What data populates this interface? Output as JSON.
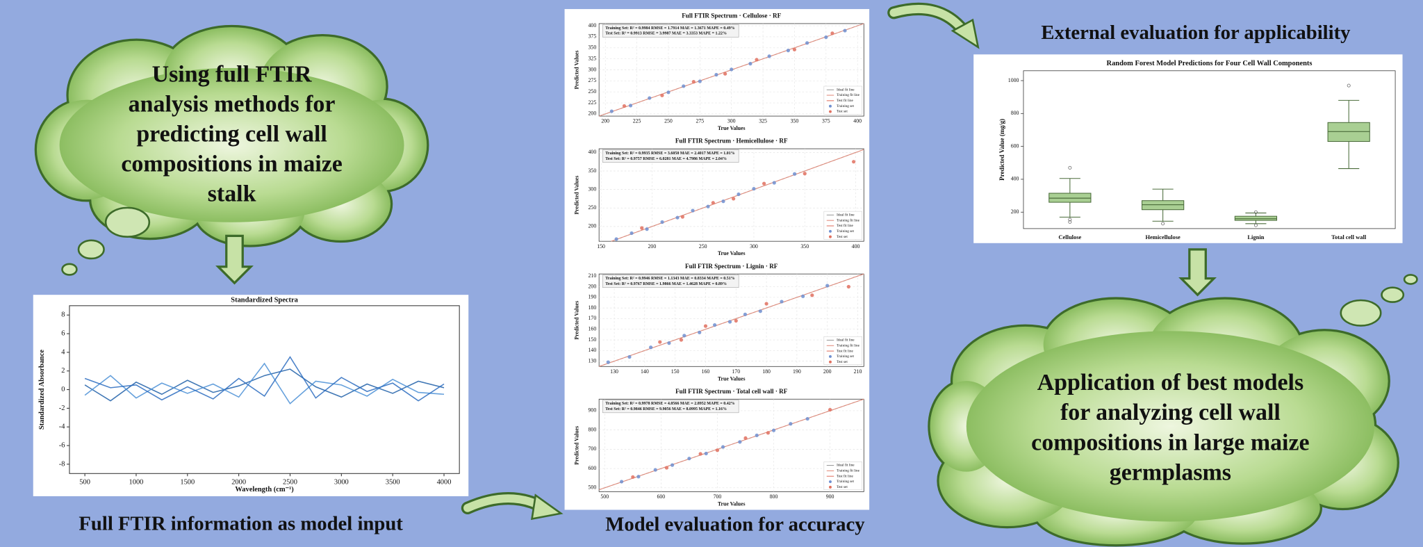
{
  "left_cloud": {
    "lines": [
      "Using full FTIR",
      "analysis methods for",
      "predicting cell wall",
      "compositions in maize",
      "stalk"
    ]
  },
  "spectra_chart": {
    "title": "Standardized Spectra",
    "x_label": "Wavelength (cm⁻¹)",
    "y_label": "Standardized Absorbance",
    "xlim": [
      350,
      4150
    ],
    "ylim": [
      -9,
      9
    ],
    "xticks": [
      500,
      1000,
      1500,
      2000,
      2500,
      3000,
      3500,
      4000
    ],
    "yticks": [
      -8,
      -6,
      -4,
      -2,
      0,
      2,
      4,
      6,
      8
    ],
    "x": [
      500,
      750,
      1000,
      1250,
      1500,
      1750,
      2000,
      2250,
      2500,
      2750,
      3000,
      3250,
      3500,
      3750,
      4000
    ],
    "series": [
      {
        "color": "#1f5fa8",
        "values": [
          0.5,
          -1.2,
          0.8,
          -0.5,
          1.0,
          -0.3,
          0.4,
          1.5,
          2.2,
          0.3,
          -0.8,
          0.6,
          -0.4,
          0.9,
          0.2
        ]
      },
      {
        "color": "#4a8fd6",
        "values": [
          -0.6,
          1.5,
          -0.9,
          0.7,
          -0.4,
          0.6,
          -0.8,
          2.8,
          -1.5,
          0.9,
          0.5,
          -0.7,
          1.1,
          -0.3,
          -0.5
        ]
      },
      {
        "color": "#2b6cc0",
        "values": [
          1.2,
          0.2,
          0.5,
          -1.1,
          0.3,
          -1.0,
          1.2,
          -0.7,
          3.5,
          -0.9,
          1.3,
          -0.2,
          0.7,
          -1.2,
          0.6
        ]
      }
    ]
  },
  "input_caption": "Full FTIR information as model input",
  "scatter_charts": [
    {
      "title": "Full FTIR Spectrum · Cellulose · RF",
      "stats": [
        "Training Set: R² = 0.9984  RMSE = 1.7914  MAE = 1.3671  MAPE = 0.49%",
        "Test Set:    R² = 0.9913  RMSE = 3.9987  MAE = 3.3353  MAPE = 1.22%"
      ],
      "x_label": "True Values",
      "y_label": "Predicted Values",
      "xlim": [
        195,
        405
      ],
      "ylim": [
        195,
        405
      ],
      "xticks": [
        200,
        225,
        250,
        275,
        300,
        325,
        350,
        375,
        400
      ],
      "yticks": [
        200,
        225,
        250,
        275,
        300,
        325,
        350,
        375,
        400
      ],
      "legend": [
        "Ideal fit line",
        "Training fit line",
        "Test fit line",
        "Training set",
        "Test set"
      ],
      "training": {
        "x": [
          205,
          220,
          235,
          250,
          262,
          275,
          288,
          300,
          315,
          330,
          345,
          360,
          375,
          390
        ],
        "y": [
          206,
          219,
          236,
          249,
          263,
          274,
          289,
          301,
          314,
          331,
          344,
          361,
          374,
          389
        ]
      },
      "test": {
        "x": [
          215,
          245,
          270,
          295,
          320,
          350,
          380
        ],
        "y": [
          218,
          242,
          273,
          291,
          323,
          346,
          383
        ]
      }
    },
    {
      "title": "Full FTIR Spectrum · Hemicellulose · RF",
      "stats": [
        "Training Set: R² = 0.9935  RMSE = 3.6050  MAE = 2.4017  MAPE = 1.01%",
        "Test Set:    R² = 0.9757  RMSE = 6.0281  MAE = 4.7986  MAPE = 2.04%"
      ],
      "x_label": "True Values",
      "y_label": "Predicted Values",
      "xlim": [
        148,
        408
      ],
      "ylim": [
        160,
        410
      ],
      "xticks": [
        150,
        200,
        250,
        300,
        350,
        400
      ],
      "yticks": [
        200,
        250,
        300,
        350,
        400
      ],
      "legend": [
        "Ideal fit line",
        "Training fit line",
        "Test fit line",
        "Training set",
        "Test set"
      ],
      "training": {
        "x": [
          165,
          180,
          195,
          210,
          225,
          240,
          255,
          270,
          285,
          300,
          320,
          340
        ],
        "y": [
          166,
          182,
          193,
          212,
          224,
          243,
          254,
          268,
          287,
          302,
          318,
          342
        ]
      },
      "test": {
        "x": [
          190,
          230,
          260,
          280,
          310,
          350,
          398
        ],
        "y": [
          196,
          226,
          264,
          275,
          316,
          343,
          375
        ]
      }
    },
    {
      "title": "Full FTIR Spectrum · Lignin · RF",
      "stats": [
        "Training Set: R² = 0.9946  RMSE = 1.1343  MAE = 0.8334  MAPE = 0.51%",
        "Test Set:    R² = 0.9767  RMSE = 1.9866  MAE = 1.4628  MAPE = 0.89%"
      ],
      "x_label": "True Values",
      "y_label": "Predicted Values",
      "xlim": [
        125,
        212
      ],
      "ylim": [
        125,
        212
      ],
      "xticks": [
        130,
        140,
        150,
        160,
        170,
        180,
        190,
        200,
        210
      ],
      "yticks": [
        130,
        140,
        150,
        160,
        170,
        180,
        190,
        200,
        210
      ],
      "legend": [
        "Ideal fit line",
        "Training fit line",
        "Test fit line",
        "Training set",
        "Test set"
      ],
      "training": {
        "x": [
          128,
          135,
          142,
          148,
          153,
          158,
          163,
          168,
          173,
          178,
          185,
          192,
          200
        ],
        "y": [
          129,
          134,
          143,
          147,
          154,
          157,
          164,
          167,
          174,
          177,
          186,
          191,
          201
        ]
      },
      "test": {
        "x": [
          145,
          152,
          160,
          170,
          180,
          195,
          207
        ],
        "y": [
          148,
          150,
          163,
          168,
          184,
          192,
          200
        ]
      }
    },
    {
      "title": "Full FTIR Spectrum · Total cell wall · RF",
      "stats": [
        "Training Set: R² = 0.9978  RMSE = 4.0566  MAE = 2.8952  MAPE = 0.42%",
        "Test Set:    R² = 0.9846  RMSE = 9.9056  MAE = 8.0995  MAPE = 1.16%"
      ],
      "x_label": "True Values",
      "y_label": "Predicted Values",
      "xlim": [
        490,
        960
      ],
      "ylim": [
        480,
        960
      ],
      "xticks": [
        500,
        600,
        700,
        800,
        900
      ],
      "yticks": [
        500,
        600,
        700,
        800,
        900
      ],
      "legend": [
        "Ideal fit line",
        "Training fit line",
        "Test fit line",
        "Training set",
        "Test set"
      ],
      "training": {
        "x": [
          530,
          560,
          590,
          620,
          650,
          680,
          710,
          740,
          770,
          800,
          830,
          860
        ],
        "y": [
          532,
          558,
          593,
          618,
          652,
          678,
          712,
          738,
          772,
          798,
          832,
          858
        ]
      },
      "test": {
        "x": [
          550,
          610,
          670,
          700,
          750,
          790,
          900
        ],
        "y": [
          556,
          604,
          676,
          695,
          758,
          785,
          905
        ]
      }
    }
  ],
  "accuracy_caption": "Model evaluation for accuracy",
  "applicability_caption": "External evaluation for applicability",
  "box_chart": {
    "title": "Random Forest Model Predictions for Four Cell Wall Components",
    "y_label": "Predicted Value (mg/g)",
    "ylim": [
      100,
      1060
    ],
    "yticks": [
      200,
      400,
      600,
      800,
      1000
    ],
    "color": "#a9cf93",
    "categories": [
      "Cellulose",
      "Hemicellulose",
      "Lignin",
      "Total cell wall"
    ],
    "boxes": [
      {
        "whislo": 170,
        "q1": 260,
        "med": 285,
        "q3": 315,
        "whishi": 405,
        "fliers": [
          470,
          140,
          155
        ]
      },
      {
        "whislo": 145,
        "q1": 215,
        "med": 245,
        "q3": 270,
        "whishi": 340,
        "fliers": [
          130
        ]
      },
      {
        "whislo": 130,
        "q1": 150,
        "med": 160,
        "q3": 175,
        "whishi": 195,
        "fliers": [
          120,
          200
        ]
      },
      {
        "whislo": 465,
        "q1": 630,
        "med": 690,
        "q3": 745,
        "whishi": 880,
        "fliers": [
          970
        ]
      }
    ]
  },
  "right_cloud": {
    "lines": [
      "Application of  best models",
      "for analyzing cell wall",
      "compositions in large maize",
      "germplasms"
    ]
  }
}
